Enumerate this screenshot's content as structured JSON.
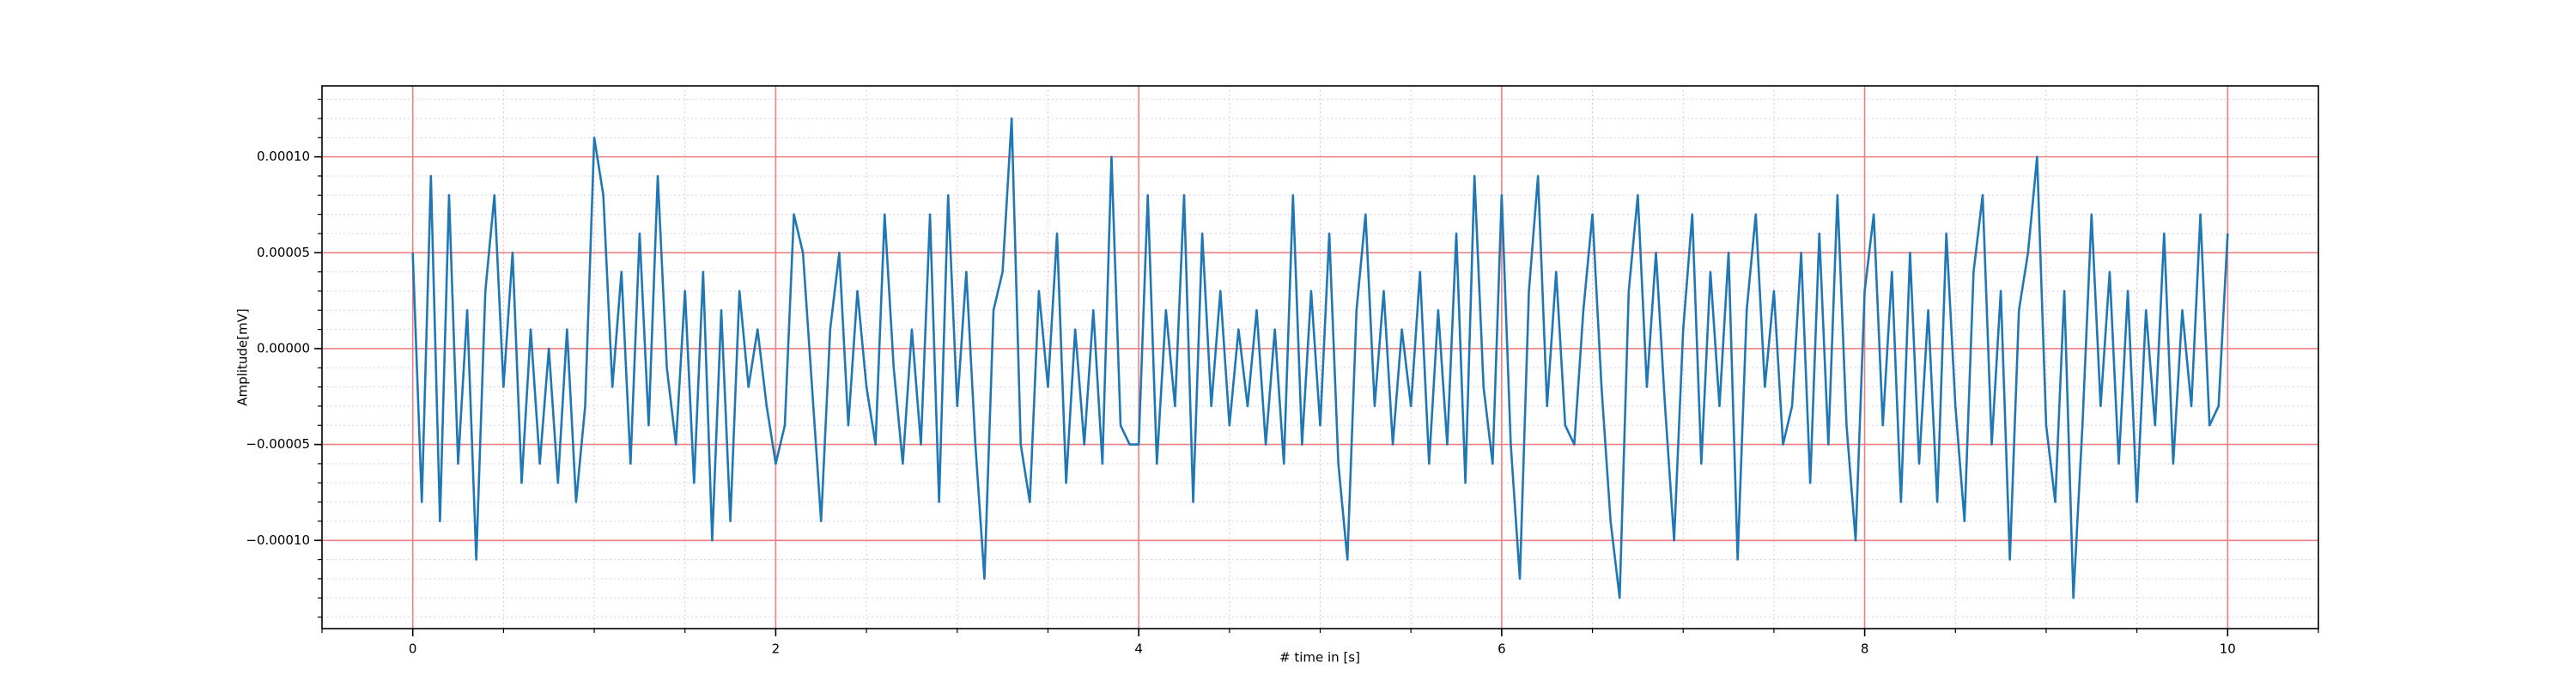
{
  "chart_data": {
    "type": "line",
    "xlabel": "# time in [s]",
    "ylabel": "Amplitude[mV]",
    "color": "#1f77b4",
    "grid": true,
    "minor_grid": true,
    "xlim": [
      -0.5,
      10.5
    ],
    "ylim": [
      -0.000146,
      0.000137
    ],
    "xticks": [
      0,
      2,
      4,
      6,
      8,
      10
    ],
    "yticks": [
      {
        "value": -0.0001,
        "label": "−0.00010"
      },
      {
        "value": -5e-05,
        "label": "−0.00005"
      },
      {
        "value": 0,
        "label": "0.00000"
      },
      {
        "value": 5e-05,
        "label": "0.00005"
      },
      {
        "value": 0.0001,
        "label": "0.00010"
      }
    ],
    "x": [
      0,
      0.05,
      0.1,
      0.15,
      0.2,
      0.25,
      0.3,
      0.35,
      0.4,
      0.45,
      0.5,
      0.55,
      0.6,
      0.65,
      0.7,
      0.75,
      0.8,
      0.85,
      0.9,
      0.95,
      1,
      1.05,
      1.1,
      1.15,
      1.2,
      1.25,
      1.3,
      1.35,
      1.4,
      1.45,
      1.5,
      1.55,
      1.6,
      1.65,
      1.7,
      1.75,
      1.8,
      1.85,
      1.9,
      1.95,
      2,
      2.05,
      2.1,
      2.15,
      2.2,
      2.25,
      2.3,
      2.35,
      2.4,
      2.45,
      2.5,
      2.55,
      2.6,
      2.65,
      2.7,
      2.75,
      2.8,
      2.85,
      2.9,
      2.95,
      3,
      3.05,
      3.1,
      3.15,
      3.2,
      3.25,
      3.3,
      3.35,
      3.4,
      3.45,
      3.5,
      3.55,
      3.6,
      3.65,
      3.7,
      3.75,
      3.8,
      3.85,
      3.9,
      3.95,
      4,
      4.05,
      4.1,
      4.15,
      4.2,
      4.25,
      4.3,
      4.35,
      4.4,
      4.45,
      4.5,
      4.55,
      4.6,
      4.65,
      4.7,
      4.75,
      4.8,
      4.85,
      4.9,
      4.95,
      5,
      5.05,
      5.1,
      5.15,
      5.2,
      5.25,
      5.3,
      5.35,
      5.4,
      5.45,
      5.5,
      5.55,
      5.6,
      5.65,
      5.7,
      5.75,
      5.8,
      5.85,
      5.9,
      5.95,
      6,
      6.05,
      6.1,
      6.15,
      6.2,
      6.25,
      6.3,
      6.35,
      6.4,
      6.45,
      6.5,
      6.55,
      6.6,
      6.65,
      6.7,
      6.75,
      6.8,
      6.85,
      6.9,
      6.95,
      7,
      7.05,
      7.1,
      7.15,
      7.2,
      7.25,
      7.3,
      7.35,
      7.4,
      7.45,
      7.5,
      7.55,
      7.6,
      7.65,
      7.7,
      7.75,
      7.8,
      7.85,
      7.9,
      7.95,
      8,
      8.05,
      8.1,
      8.15,
      8.2,
      8.25,
      8.3,
      8.35,
      8.4,
      8.45,
      8.5,
      8.55,
      8.6,
      8.65,
      8.7,
      8.75,
      8.8,
      8.85,
      8.9,
      8.95,
      9,
      9.05,
      9.1,
      9.15,
      9.2,
      9.25,
      9.3,
      9.35,
      9.4,
      9.45,
      9.5,
      9.55,
      9.6,
      9.65,
      9.7,
      9.75,
      9.8,
      9.85,
      9.9,
      9.95,
      10
    ],
    "values": [
      5e-05,
      -8e-05,
      9e-05,
      -9e-05,
      8e-05,
      -6e-05,
      2e-05,
      -0.00011,
      3e-05,
      8e-05,
      -2e-05,
      5e-05,
      -7e-05,
      1e-05,
      -6e-05,
      0,
      -7e-05,
      1e-05,
      -8e-05,
      -3e-05,
      0.00011,
      8e-05,
      -2e-05,
      4e-05,
      -6e-05,
      6e-05,
      -4e-05,
      9e-05,
      -1e-05,
      -5e-05,
      3e-05,
      -7e-05,
      4e-05,
      -0.0001,
      2e-05,
      -9e-05,
      3e-05,
      -2e-05,
      1e-05,
      -3e-05,
      -6e-05,
      -4e-05,
      7e-05,
      5e-05,
      -2e-05,
      -9e-05,
      1e-05,
      5e-05,
      -4e-05,
      3e-05,
      -2e-05,
      -5e-05,
      7e-05,
      -1e-05,
      -6e-05,
      1e-05,
      -5e-05,
      7e-05,
      -8e-05,
      8e-05,
      -3e-05,
      4e-05,
      -5e-05,
      -0.00012,
      2e-05,
      4e-05,
      0.00012,
      -5e-05,
      -8e-05,
      3e-05,
      -2e-05,
      6e-05,
      -7e-05,
      1e-05,
      -5e-05,
      2e-05,
      -6e-05,
      0.0001,
      -4e-05,
      -5e-05,
      -5e-05,
      8e-05,
      -6e-05,
      2e-05,
      -3e-05,
      8e-05,
      -8e-05,
      6e-05,
      -3e-05,
      3e-05,
      -4e-05,
      1e-05,
      -3e-05,
      2e-05,
      -5e-05,
      1e-05,
      -6e-05,
      8e-05,
      -5e-05,
      3e-05,
      -4e-05,
      6e-05,
      -6e-05,
      -0.00011,
      2e-05,
      7e-05,
      -3e-05,
      3e-05,
      -5e-05,
      1e-05,
      -3e-05,
      4e-05,
      -6e-05,
      2e-05,
      -5e-05,
      6e-05,
      -7e-05,
      9e-05,
      -2e-05,
      -6e-05,
      8e-05,
      -5e-05,
      -0.00012,
      3e-05,
      9e-05,
      -3e-05,
      4e-05,
      -4e-05,
      -5e-05,
      2e-05,
      7e-05,
      -2e-05,
      -9e-05,
      -0.00013,
      3e-05,
      8e-05,
      -2e-05,
      5e-05,
      -3e-05,
      -0.0001,
      1e-05,
      7e-05,
      -6e-05,
      4e-05,
      -3e-05,
      5e-05,
      -0.00011,
      2e-05,
      7e-05,
      -2e-05,
      3e-05,
      -5e-05,
      -3e-05,
      5e-05,
      -7e-05,
      6e-05,
      -5e-05,
      8e-05,
      -4e-05,
      -0.0001,
      3e-05,
      7e-05,
      -4e-05,
      4e-05,
      -8e-05,
      5e-05,
      -6e-05,
      2e-05,
      -8e-05,
      6e-05,
      -3e-05,
      -9e-05,
      4e-05,
      8e-05,
      -5e-05,
      3e-05,
      -0.00011,
      2e-05,
      5e-05,
      0.0001,
      -4e-05,
      -8e-05,
      3e-05,
      -0.00013,
      -4e-05,
      7e-05,
      -3e-05,
      4e-05,
      -6e-05,
      3e-05,
      -8e-05,
      2e-05,
      -4e-05,
      6e-05,
      -6e-05,
      2e-05,
      -3e-05,
      7e-05,
      -4e-05,
      -3e-05,
      6e-05
    ]
  }
}
